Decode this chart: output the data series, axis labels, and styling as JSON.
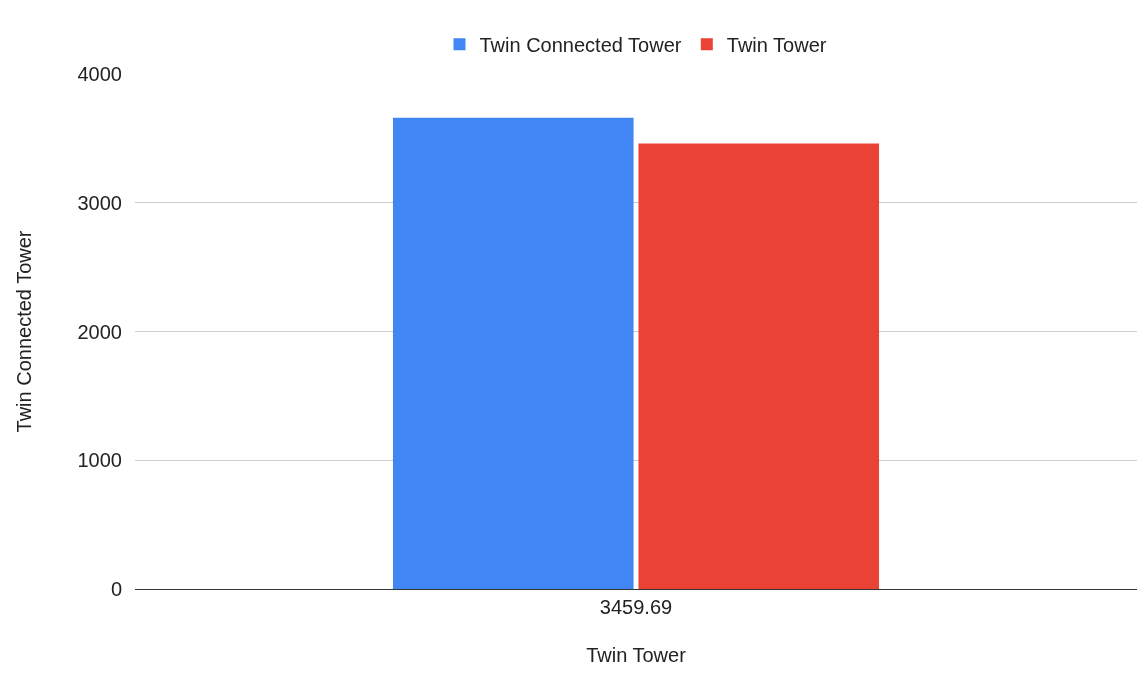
{
  "chart_data": {
    "type": "bar",
    "xlabel": "Twin Tower",
    "ylabel": "Twin Connected Tower",
    "categories": [
      "3459.69"
    ],
    "series": [
      {
        "name": "Twin Connected Tower",
        "color": "#4285f4",
        "values": [
          3660
        ]
      },
      {
        "name": "Twin Tower",
        "color": "#ea4335",
        "values": [
          3460
        ]
      }
    ],
    "ylim": [
      0,
      4000
    ],
    "yticks": [
      0,
      1000,
      2000,
      3000,
      4000
    ],
    "grid": "y",
    "legend": "top"
  }
}
